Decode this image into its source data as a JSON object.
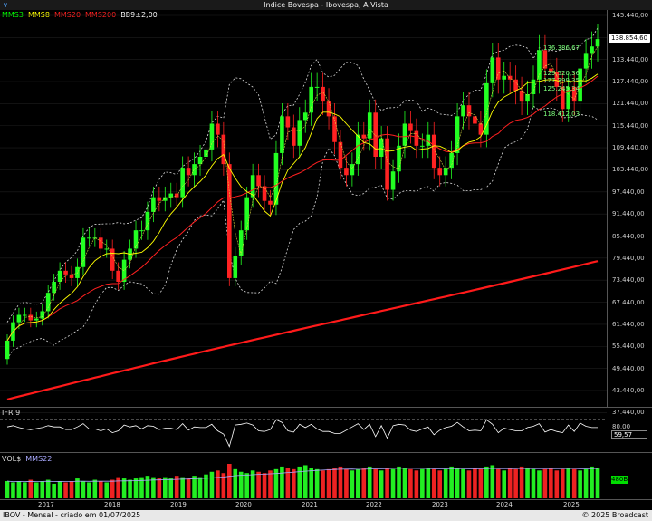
{
  "window_title": "Indice Bovespa - Ibovespa, A Vista",
  "legend": [
    {
      "label": "MMS3",
      "color": "#00ff00"
    },
    {
      "label": "MMS8",
      "color": "#ffff00"
    },
    {
      "label": "MMS20",
      "color": "#ff2020"
    },
    {
      "label": "MMS200",
      "color": "#ff2020"
    },
    {
      "label": "BB9±2,00",
      "color": "#ffffff"
    }
  ],
  "price_axis_labels": [
    "145.440,00",
    "139.440,00",
    "133.440,00",
    "127.440,00",
    "121.440,00",
    "115.440,00",
    "109.440,00",
    "103.440,00",
    "97.440,00",
    "91.440,00",
    "85.440,00",
    "79.440,00",
    "73.440,00",
    "67.440,00",
    "61.440,00",
    "55.440,00",
    "49.440,00",
    "43.440,00",
    "37.440,00"
  ],
  "current_price": "138.854,60",
  "annotations": [
    "136.386,67",
    "129.520,36",
    "127.399,35",
    "125.245,34",
    "118.412,03"
  ],
  "ifr": {
    "label": "IFR 9",
    "level_label": "80,00",
    "value_label": "59,57"
  },
  "volume": {
    "label": "VOL$",
    "ma_label": "MMS22",
    "value_label": "480B"
  },
  "x_labels": [
    "2017",
    "2018",
    "2019",
    "2020",
    "2021",
    "2022",
    "2023",
    "2024",
    "2025"
  ],
  "footer": {
    "left": "IBOV - Mensal - criado em 01/07/2025",
    "right": "© 2025 Broadcast"
  },
  "chart_data": {
    "type": "candlestick",
    "frequency": "monthly",
    "ylim": [
      35000,
      147000
    ],
    "close": [
      57000,
      62000,
      64000,
      64000,
      62500,
      63000,
      65000,
      70000,
      73000,
      76000,
      75000,
      74000,
      77000,
      85000,
      85000,
      85000,
      82000,
      82000,
      76000,
      73000,
      79000,
      82000,
      87000,
      87000,
      92000,
      96000,
      95000,
      96000,
      97000,
      96000,
      104000,
      102000,
      105000,
      107000,
      109000,
      116000,
      113000,
      105000,
      74000,
      80000,
      87000,
      96000,
      102000,
      99000,
      95000,
      94000,
      108000,
      118000,
      115000,
      110000,
      117000,
      119000,
      126000,
      126000,
      122000,
      118000,
      111000,
      104000,
      102000,
      105000,
      113000,
      112000,
      119000,
      107000,
      112000,
      98000,
      103000,
      110000,
      116000,
      114000,
      110000,
      110000,
      113000,
      104000,
      102000,
      104000,
      108000,
      118000,
      121000,
      118000,
      116000,
      113000,
      127000,
      134000,
      128000,
      129000,
      128000,
      125000,
      122000,
      124000,
      128000,
      136000,
      131000,
      130000,
      126000,
      120000,
      126000,
      122000,
      131000,
      135000,
      137000,
      139000
    ],
    "bars": [
      13,
      12,
      13,
      12,
      14,
      12,
      13,
      14,
      11,
      13,
      12,
      13,
      15,
      13,
      12,
      14,
      13,
      12,
      14,
      16,
      15,
      14,
      15,
      16,
      17,
      16,
      15,
      16,
      15,
      17,
      16,
      15,
      17,
      16,
      18,
      20,
      21,
      19,
      26,
      22,
      20,
      19,
      21,
      20,
      19,
      21,
      22,
      24,
      23,
      22,
      24,
      25,
      23,
      22,
      21,
      22,
      23,
      24,
      22,
      21,
      22,
      23,
      24,
      22,
      21,
      23,
      22,
      24,
      23,
      22,
      21,
      22,
      23,
      22,
      21,
      22,
      24,
      23,
      22,
      21,
      23,
      22,
      24,
      25,
      22,
      21,
      23,
      22,
      24,
      23,
      22,
      21,
      22,
      23,
      21,
      22,
      23,
      22,
      21,
      22,
      24,
      23
    ]
  }
}
